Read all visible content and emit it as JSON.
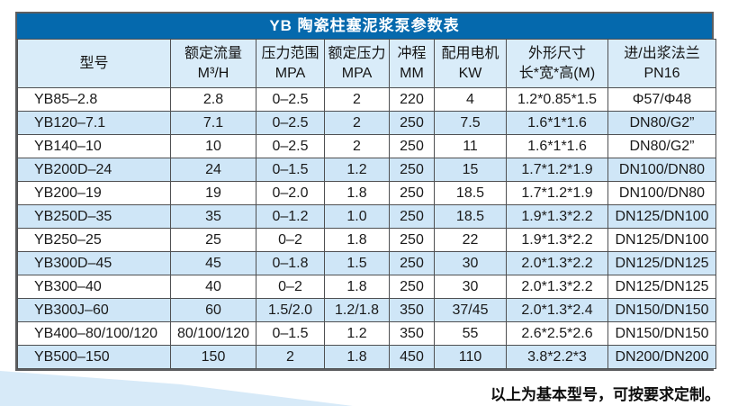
{
  "table": {
    "title": "YB 陶瓷柱塞泥浆泵参数表",
    "columns": [
      {
        "line1": "型号",
        "line2": ""
      },
      {
        "line1": "额定流量",
        "line2": "M³/H"
      },
      {
        "line1": "压力范围",
        "line2": "MPA"
      },
      {
        "line1": "额定压力",
        "line2": "MPA"
      },
      {
        "line1": "冲程",
        "line2": "MM"
      },
      {
        "line1": "配用电机",
        "line2": "KW"
      },
      {
        "line1": "外形尺寸",
        "line2": "长*宽*高(M)"
      },
      {
        "line1": "进/出浆法兰",
        "line2": "PN16"
      }
    ],
    "rows": [
      [
        "YB85–2.8",
        "2.8",
        "0–2.5",
        "2",
        "220",
        "4",
        "1.2*0.85*1.5",
        "Φ57/Φ48"
      ],
      [
        "YB120–7.1",
        "7.1",
        "0–2.5",
        "2",
        "250",
        "7.5",
        "1.6*1*1.6",
        "DN80/G2”"
      ],
      [
        "YB140–10",
        "10",
        "0–2.5",
        "2",
        "250",
        "11",
        "1.6*1*1.6",
        "DN80/G2”"
      ],
      [
        "YB200D–24",
        "24",
        "0–1.5",
        "1.2",
        "250",
        "15",
        "1.7*1.2*1.9",
        "DN100/DN80"
      ],
      [
        "YB200–19",
        "19",
        "0–2.0",
        "1.8",
        "250",
        "18.5",
        "1.7*1.2*1.9",
        "DN100/DN80"
      ],
      [
        "YB250D–35",
        "35",
        "0–1.2",
        "1.0",
        "250",
        "18.5",
        "1.9*1.3*2.2",
        "DN125/DN100"
      ],
      [
        "YB250–25",
        "25",
        "0–2",
        "1.8",
        "250",
        "22",
        "1.9*1.3*2.2",
        "DN125/DN100"
      ],
      [
        "YB300D–45",
        "45",
        "0–1.8",
        "1.5",
        "250",
        "30",
        "2.0*1.3*2.2",
        "DN125/DN125"
      ],
      [
        "YB300–40",
        "40",
        "0–2",
        "1.8",
        "250",
        "30",
        "2.0*1.3*2.2",
        "DN125/DN125"
      ],
      [
        "YB300J–60",
        "60",
        "1.5/2.0",
        "1.2/1.8",
        "350",
        "37/45",
        "2.0*1.3*2.4",
        "DN150/DN150"
      ],
      [
        "YB400–80/100/120",
        "80/100/120",
        "0–1.5",
        "1.2",
        "350",
        "55",
        "2.6*2.5*2.6",
        "DN150/DN150"
      ],
      [
        "YB500–150",
        "150",
        "2",
        "1.8",
        "450",
        "110",
        "3.8*2.2*3",
        "DN200/DN200"
      ]
    ],
    "footnote": "以上为基本型号，可按要求定制。"
  },
  "colors": {
    "title_bar": "#0569ad",
    "title_text": "#ffffff",
    "header_bg": "#d9ecf9",
    "row_alt_bg": "#cfe6f7",
    "grid_line": "#4f5052",
    "wedge": "#d7eaf8"
  }
}
